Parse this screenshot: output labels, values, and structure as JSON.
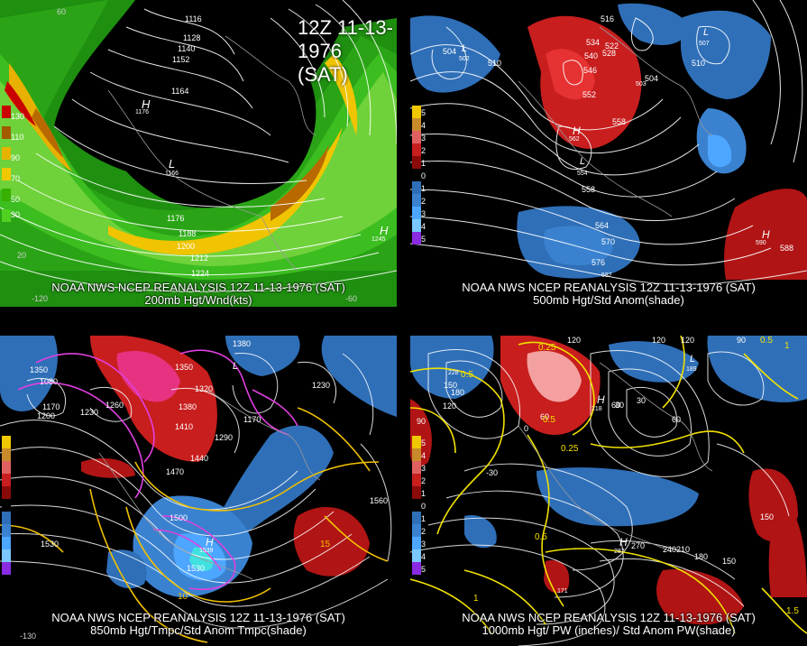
{
  "title": "12Z 11-13-1976 (SAT)",
  "panels": {
    "tl": {
      "caption1": "NOAA NWS NCEP REANALYSIS 12Z 11-13-1976 (SAT)",
      "caption2": "200mb Hgt/Wnd(kts)",
      "legend": [
        "130",
        "110",
        "90",
        "70",
        "50",
        "30"
      ],
      "legend_colors": [
        "#c80000",
        "#a05a00",
        "#e6b400",
        "#f0c800",
        "#38b000",
        "#50d020"
      ],
      "contours": [
        "1116",
        "1128",
        "1140",
        "1152",
        "1164",
        "1176",
        "1176",
        "1188",
        "1200",
        "1212",
        "1224",
        "1245"
      ],
      "centers": [
        {
          "label": "H",
          "value": "1176"
        },
        {
          "label": "L",
          "value": "1166"
        },
        {
          "label": "H",
          "value": "1245"
        }
      ],
      "ticks": [
        "60",
        "20",
        "-120",
        "-60"
      ]
    },
    "tr": {
      "caption1": "NOAA NWS NCEP REANALYSIS 12Z 11-13-1976 (SAT)",
      "caption2": "500mb Hgt/Std Anom(shade)",
      "legend": [
        "5",
        "4",
        "3",
        "2",
        "1",
        "0",
        "1",
        "2",
        "3",
        "4",
        "5"
      ],
      "contours": [
        "504",
        "510",
        "516",
        "534",
        "540",
        "546",
        "552",
        "558",
        "528",
        "522",
        "504",
        "510",
        "558",
        "564",
        "570",
        "576",
        "582",
        "588"
      ],
      "centers": [
        {
          "label": "L",
          "value": "502"
        },
        {
          "label": "L",
          "value": "503"
        },
        {
          "label": "L",
          "value": "507"
        },
        {
          "label": "H",
          "value": "562"
        },
        {
          "label": "L",
          "value": "554"
        },
        {
          "label": "H",
          "value": "590"
        }
      ]
    },
    "bl": {
      "caption1": "NOAA NWS NCEP REANALYSIS 12Z 11-13-1976 (SAT)",
      "caption2": "850mb Hgt/Tmpc/Std Anom Tmpc(shade)",
      "contours": [
        "1350",
        "1350",
        "1080",
        "1170",
        "1200",
        "1230",
        "1260",
        "1380",
        "1320",
        "1410",
        "1440",
        "1470",
        "1500",
        "1530",
        "1560",
        "1230",
        "1290",
        "1170",
        "1380",
        "1530"
      ],
      "temps": [
        "15",
        "10"
      ],
      "centers": [
        {
          "label": "H",
          "value": "1539"
        },
        {
          "label": "L",
          "value": ""
        }
      ],
      "ticks": [
        "-130"
      ]
    },
    "br": {
      "caption1": "NOAA NWS NCEP REANALYSIS 12Z 11-13-1976 (SAT)",
      "caption2": "1000mb Hgt/ PW (inches)/ Std Anom PW(shade)",
      "contours": [
        "120",
        "120",
        "90",
        "150",
        "180",
        "30",
        "60",
        "0",
        "-30",
        "60",
        "90",
        "120",
        "150",
        "180",
        "210",
        "240",
        "270",
        "150",
        "120",
        "60",
        "30"
      ],
      "pw": [
        "0.25",
        "0.5",
        "0.25",
        "0.5",
        "1",
        "1",
        "1.5",
        "0.5",
        "0.5"
      ],
      "centers": [
        {
          "label": "H",
          "value": "218"
        },
        {
          "label": "H",
          "value": "287"
        },
        {
          "label": "L",
          "value": "189"
        },
        {
          "label": "H",
          "value": "228"
        },
        {
          "label": "H",
          "value": "171"
        }
      ]
    }
  }
}
